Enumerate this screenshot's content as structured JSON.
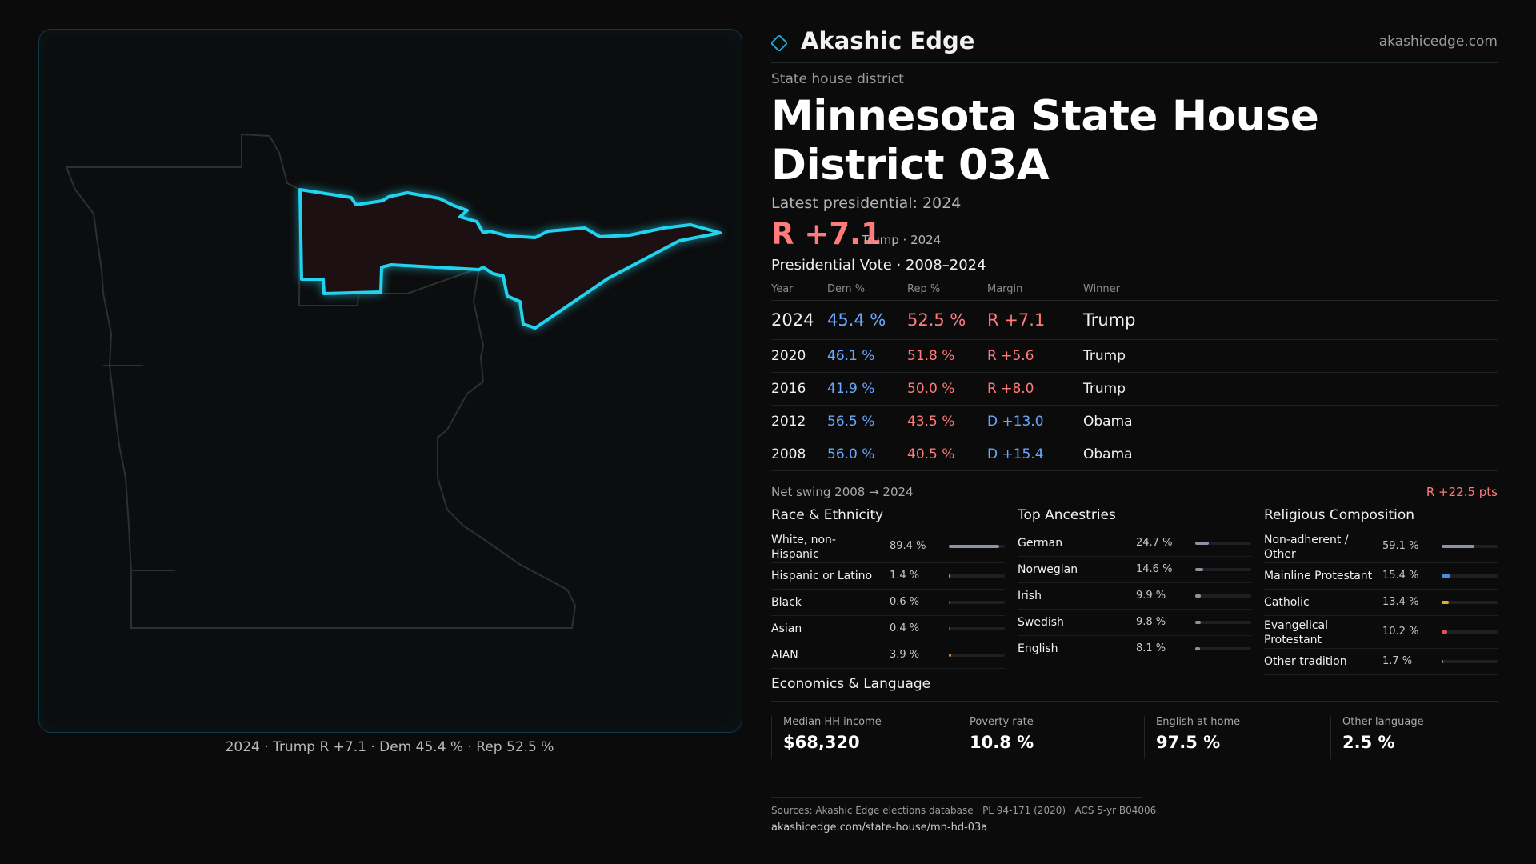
{
  "brand": {
    "name": "Akashic Edge",
    "url": "akashicedge.com",
    "accent": "#00d4ff"
  },
  "header": {
    "subtitle": "State house district",
    "title": "Minnesota State House District 03A",
    "latest": "Latest presidential: 2024",
    "big_margin": "R +7.1",
    "big_sub": "Trump · 2024"
  },
  "votes": {
    "title": "Presidential Vote · 2008–2024",
    "headers": [
      "Year",
      "Dem %",
      "Rep %",
      "Margin",
      "Winner"
    ],
    "rows": [
      {
        "year": "2024",
        "dem": "45.4 %",
        "rep": "52.5 %",
        "margin": "R +7.1",
        "winner": "Trump",
        "party": "R"
      },
      {
        "year": "2020",
        "dem": "46.1 %",
        "rep": "51.8 %",
        "margin": "R +5.6",
        "winner": "Trump",
        "party": "R"
      },
      {
        "year": "2016",
        "dem": "41.9 %",
        "rep": "50.0 %",
        "margin": "R +8.0",
        "winner": "Trump",
        "party": "R"
      },
      {
        "year": "2012",
        "dem": "56.5 %",
        "rep": "43.5 %",
        "margin": "D +13.0",
        "winner": "Obama",
        "party": "D"
      },
      {
        "year": "2008",
        "dem": "56.0 %",
        "rep": "40.5 %",
        "margin": "D +15.4",
        "winner": "Obama",
        "party": "D"
      }
    ],
    "swing_label": "Net swing 2008 → 2024",
    "swing_value": "R +22.5 pts"
  },
  "race": {
    "title": "Race & Ethnicity",
    "items": [
      {
        "label": "White, non-Hispanic",
        "value": "89.4 %",
        "frac": 0.894,
        "color": "#8a94a4"
      },
      {
        "label": "Hispanic or Latino",
        "value": "1.4 %",
        "frac": 0.014,
        "color": "#d4a020"
      },
      {
        "label": "Black",
        "value": "0.6 %",
        "frac": 0.006,
        "color": "#5a5a60"
      },
      {
        "label": "Asian",
        "value": "0.4 %",
        "frac": 0.004,
        "color": "#5a5a60"
      },
      {
        "label": "AIAN",
        "value": "3.9 %",
        "frac": 0.039,
        "color": "#e08030"
      }
    ]
  },
  "ancestry": {
    "title": "Top Ancestries",
    "items": [
      {
        "label": "German",
        "value": "24.7 %",
        "frac": 0.247,
        "color": "#8a94a4"
      },
      {
        "label": "Norwegian",
        "value": "14.6 %",
        "frac": 0.146,
        "color": "#8a94a4"
      },
      {
        "label": "Irish",
        "value": "9.9 %",
        "frac": 0.099,
        "color": "#8a94a4"
      },
      {
        "label": "Swedish",
        "value": "9.8 %",
        "frac": 0.098,
        "color": "#8a94a4"
      },
      {
        "label": "English",
        "value": "8.1 %",
        "frac": 0.081,
        "color": "#8a94a4"
      }
    ]
  },
  "religion": {
    "title": "Religious Composition",
    "items": [
      {
        "label": "Non-adherent / Other",
        "value": "59.1 %",
        "frac": 0.591,
        "color": "#8a94a4"
      },
      {
        "label": "Mainline Protestant",
        "value": "15.4 %",
        "frac": 0.154,
        "color": "#4a8ae0"
      },
      {
        "label": "Catholic",
        "value": "13.4 %",
        "frac": 0.134,
        "color": "#e0b020"
      },
      {
        "label": "Evangelical Protestant",
        "value": "10.2 %",
        "frac": 0.102,
        "color": "#e05060"
      },
      {
        "label": "Other tradition",
        "value": "1.7 %",
        "frac": 0.017,
        "color": "#8a94a4"
      }
    ]
  },
  "economics": {
    "title": "Economics & Language",
    "items": [
      {
        "label": "Median HH income",
        "value": "$68,320"
      },
      {
        "label": "Poverty rate",
        "value": "10.8 %"
      },
      {
        "label": "English at home",
        "value": "97.5 %"
      },
      {
        "label": "Other language",
        "value": "2.5 %"
      }
    ]
  },
  "map": {
    "caption": "2024 · Trump R +7.1 · Dem 45.4 % · Rep 52.5 %"
  },
  "footer": {
    "sources": "Sources: Akashic Edge elections database · PL 94-171 (2020) · ACS 5-yr B04006",
    "url": "akashicedge.com/state-house/mn-hd-03a"
  }
}
